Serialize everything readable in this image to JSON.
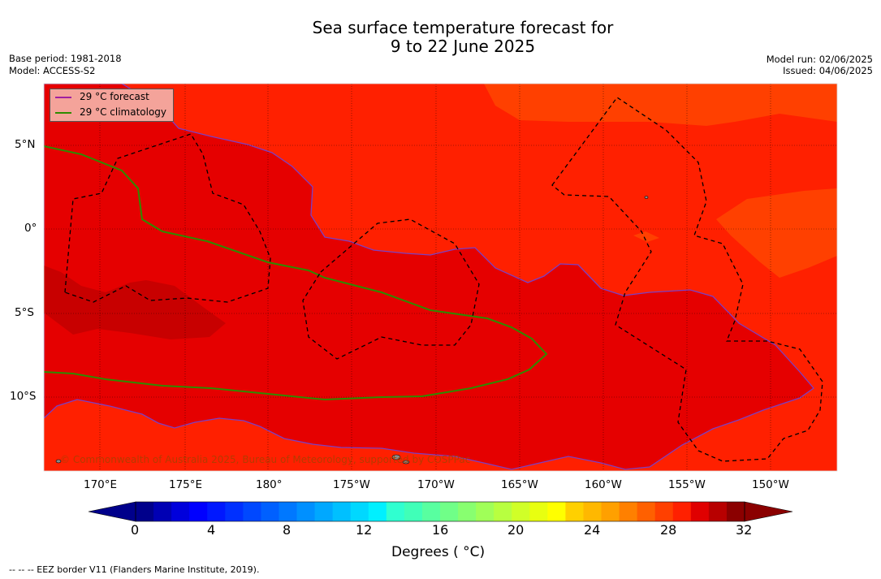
{
  "header": {
    "title_line1": "Sea surface temperature forecast for",
    "title_line2": "9 to 22 June 2025",
    "base_period": "Base period: 1981-2018",
    "model": "Model: ACCESS-S2",
    "model_run": "Model run: 02/06/2025",
    "issued": "Issued: 04/06/2025"
  },
  "legend": {
    "items": [
      {
        "label": "29 °C  forecast",
        "color": "#a020a0"
      },
      {
        "label": "29 °C  climatology",
        "color": "#2e8b00"
      }
    ]
  },
  "map": {
    "lat_labels": [
      "5°N",
      "0°",
      "5°S",
      "10°S"
    ],
    "lon_labels": [
      "170°E",
      "175°E",
      "180°",
      "175°W",
      "170°W",
      "165°W",
      "160°W",
      "155°W",
      "150°W"
    ],
    "copyright": "© Commonwealth of Australia 2025, Bureau of Meteorology, supported by COSPPac",
    "colors": {
      "warm": "#ff2000",
      "hot": "#e50000",
      "hottest": "#c80000",
      "cooler": "#ff4000"
    }
  },
  "colorbar": {
    "ticks": [
      "0",
      "4",
      "8",
      "12",
      "16",
      "20",
      "24",
      "28",
      "32"
    ],
    "label": "Degrees ( °C)",
    "colors": [
      "#00008b",
      "#0000b4",
      "#0000dc",
      "#0000ff",
      "#0018ff",
      "#0030ff",
      "#0048ff",
      "#0060ff",
      "#0078ff",
      "#0090ff",
      "#00a8ff",
      "#00c0ff",
      "#00d8ff",
      "#00f0ff",
      "#30ffd0",
      "#40ffb8",
      "#58ffa0",
      "#70ff88",
      "#88ff70",
      "#a0ff58",
      "#b8ff40",
      "#d0ff28",
      "#e8ff10",
      "#ffff00",
      "#ffd000",
      "#ffb800",
      "#ffa000",
      "#ff8000",
      "#ff6000",
      "#ff4000",
      "#ff2000",
      "#e00000",
      "#b80000",
      "#8b0000"
    ]
  },
  "footer": {
    "eez_note": "--  --  -- EEZ border V11 (Flanders Marine Institute, 2019)."
  }
}
